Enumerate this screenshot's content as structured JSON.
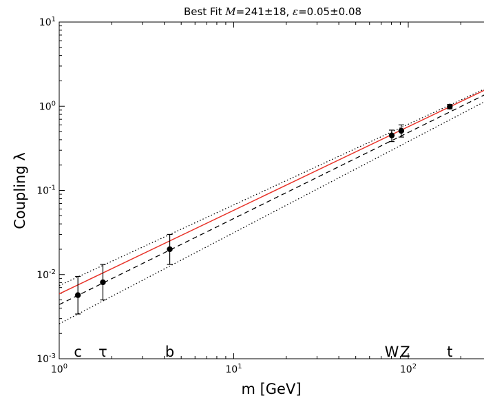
{
  "chart_data": {
    "type": "scatter",
    "title": {
      "prefix": "Best Fit ",
      "m_symbol": "M",
      "m_value": "=241±18",
      "sep": ", ",
      "eps_symbol": "ε",
      "eps_value": "=0.05±0.08"
    },
    "xlabel": "m [GeV]",
    "ylabel": "Coupling λ",
    "xscale": "log",
    "yscale": "log",
    "xlim": [
      1,
      300
    ],
    "ylim": [
      0.001,
      10
    ],
    "x_ticks": [
      {
        "value": 1,
        "base": "10",
        "exp": "0"
      },
      {
        "value": 10,
        "base": "10",
        "exp": "1"
      },
      {
        "value": 100,
        "base": "10",
        "exp": "2"
      }
    ],
    "y_ticks": [
      {
        "value": 0.001,
        "base": "10",
        "exp": "-3"
      },
      {
        "value": 0.01,
        "base": "10",
        "exp": "-2"
      },
      {
        "value": 0.1,
        "base": "10",
        "exp": "-1"
      },
      {
        "value": 1,
        "base": "10",
        "exp": "0"
      },
      {
        "value": 10,
        "base": "10",
        "exp": "1"
      }
    ],
    "points": [
      {
        "x": 1.28,
        "y": 0.0057,
        "ylow": 0.0034,
        "yhigh": 0.0095
      },
      {
        "x": 1.78,
        "y": 0.0081,
        "ylow": 0.005,
        "yhigh": 0.0132
      },
      {
        "x": 4.3,
        "y": 0.02,
        "ylow": 0.0132,
        "yhigh": 0.03
      },
      {
        "x": 80.4,
        "y": 0.45,
        "ylow": 0.38,
        "yhigh": 0.52
      },
      {
        "x": 91.2,
        "y": 0.51,
        "ylow": 0.43,
        "yhigh": 0.6
      },
      {
        "x": 173,
        "y": 0.99,
        "ylow": 0.93,
        "yhigh": 1.05
      }
    ],
    "particle_labels": [
      {
        "text": "c",
        "x": 1.28
      },
      {
        "text": "τ",
        "x": 1.78
      },
      {
        "text": "b",
        "x": 4.3
      },
      {
        "text": "W",
        "x": 80.4
      },
      {
        "text": "Z",
        "x": 96
      },
      {
        "text": "t",
        "x": 173
      }
    ],
    "lines": [
      {
        "style": "solid",
        "color": "#e8342a",
        "x": [
          1,
          300
        ],
        "y": [
          0.0059,
          1.7
        ]
      },
      {
        "style": "dashed",
        "color": "#000000",
        "x": [
          1,
          300
        ],
        "y": [
          0.0044,
          1.5
        ]
      },
      {
        "style": "dotted",
        "color": "#000000",
        "x": [
          1,
          300
        ],
        "y": [
          0.0074,
          1.75
        ]
      },
      {
        "style": "dotted",
        "color": "#000000",
        "x": [
          1,
          300
        ],
        "y": [
          0.0026,
          1.25
        ]
      }
    ]
  }
}
